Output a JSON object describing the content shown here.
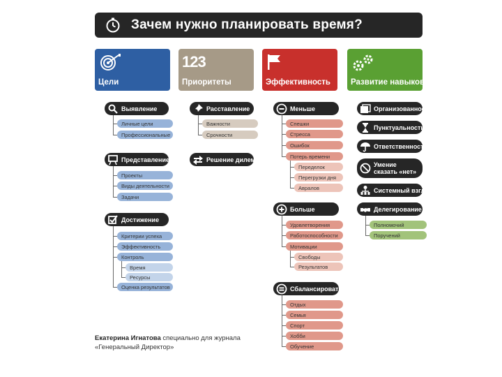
{
  "title": "Зачем нужно планировать время?",
  "colors": {
    "goals": "#2e5fa3",
    "priorities": "#a69a87",
    "efficiency": "#c8302c",
    "skills": "#5aa033",
    "dark": "#262626"
  },
  "categories": {
    "goals": {
      "label": "Цели",
      "icon": "target-icon"
    },
    "priorities": {
      "label": "Приоритеты",
      "badge": "123",
      "icon": "numbers-icon"
    },
    "efficiency": {
      "label": "Эффективность",
      "icon": "flag-icon"
    },
    "skills": {
      "label": "Развитие навыков",
      "icon": "gears-icon"
    }
  },
  "goals": {
    "identify": {
      "label": "Выявление",
      "items": [
        "Личные цели",
        "Профессиональные"
      ]
    },
    "represent": {
      "label": "Представление",
      "items": [
        "Проекты",
        "Виды деятельности",
        "Задачи"
      ]
    },
    "achieve": {
      "label": "Достижение",
      "items": [
        "Критерии успеха",
        "Эффективность",
        "Контроль",
        "Время",
        "Ресурсы",
        "Оценка результатов"
      ]
    }
  },
  "priorities": {
    "rank": {
      "label": "Расставление",
      "items": [
        "Важности",
        "Срочности"
      ]
    },
    "decide": {
      "label": "Решение дилемм"
    }
  },
  "efficiency": {
    "less": {
      "label": "Меньше",
      "items": [
        "Спешки",
        "Стресса",
        "Ошибок",
        "Потерь времени",
        "Переделок",
        "Перегрузки дня",
        "Авралов"
      ]
    },
    "more": {
      "label": "Больше",
      "items": [
        "Удовлетворения",
        "Работоспособности",
        "Мотивации",
        "Свободы",
        "Результатов"
      ]
    },
    "balance": {
      "label": "Сбалансировать",
      "items": [
        "Отдых",
        "Семья",
        "Спорт",
        "Хобби",
        "Обучение"
      ]
    }
  },
  "skills": {
    "items": [
      "Организованность",
      "Пунктуальность",
      "Ответственность",
      "Умение сказать «нет»",
      "Системный взгляд",
      "Делегирование"
    ],
    "delegation": [
      "Полномочий",
      "Поручений"
    ]
  },
  "credit": {
    "author": "Екатерина Игнатова",
    "line1_rest": " специально для журнала",
    "line2": "«Генеральный Директор»"
  }
}
